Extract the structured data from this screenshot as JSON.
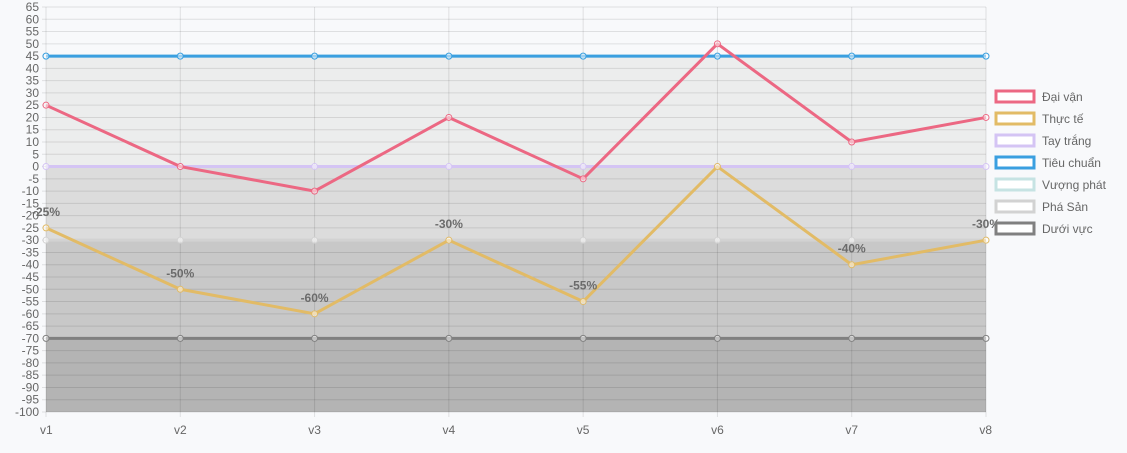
{
  "chart_data": {
    "type": "line",
    "title": "",
    "xlabel": "",
    "ylabel": "",
    "x": [
      "v1",
      "v2",
      "v3",
      "v4",
      "v5",
      "v6",
      "v7",
      "v8"
    ],
    "ylim": [
      -100,
      65
    ],
    "ytick_step": 5,
    "grid": true,
    "legend_position": "right",
    "bands": [
      {
        "from": 45,
        "to": 65,
        "color": "#f8f9fb"
      },
      {
        "from": 0,
        "to": 45,
        "color": "#eceded"
      },
      {
        "from": -30,
        "to": 0,
        "color": "#dcdcdc"
      },
      {
        "from": -70,
        "to": -30,
        "color": "#c8c8c8"
      },
      {
        "from": -100,
        "to": -70,
        "color": "#b4b4b4"
      }
    ],
    "series": [
      {
        "name": "Đại vận",
        "color": "#ec6883",
        "values": [
          25,
          0,
          -10,
          20,
          -5,
          50,
          10,
          20
        ]
      },
      {
        "name": "Thực tế",
        "color": "#e2bb66",
        "values": [
          -25,
          -50,
          -60,
          -30,
          -55,
          0,
          -40,
          -30
        ],
        "data_labels": [
          "-25%",
          "-50%",
          "-60%",
          "-30%",
          "-55%",
          "",
          "-40%",
          "-30%"
        ]
      },
      {
        "name": "Tay trắng",
        "color": "#d4c4f4",
        "values": [
          0,
          0,
          0,
          0,
          0,
          0,
          0,
          0
        ]
      },
      {
        "name": "Tiêu chuẩn",
        "color": "#3a9fe0",
        "values": [
          45,
          45,
          45,
          45,
          45,
          45,
          45,
          45
        ]
      },
      {
        "name": "Vượng phát",
        "color": "#c6e3e3",
        "values": [
          45,
          45,
          45,
          45,
          45,
          45,
          45,
          45
        ]
      },
      {
        "name": "Phá Sản",
        "color": "#d2d2d2",
        "values": [
          -30,
          -30,
          -30,
          -30,
          -30,
          -30,
          -30,
          -30
        ]
      },
      {
        "name": "Dưới vực",
        "color": "#808080",
        "values": [
          -70,
          -70,
          -70,
          -70,
          -70,
          -70,
          -70,
          -70
        ]
      }
    ]
  }
}
